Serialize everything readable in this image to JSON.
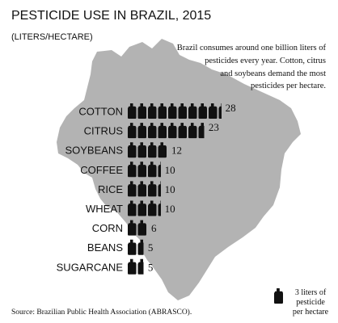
{
  "title": "PESTICIDE USE IN BRAZIL, 2015",
  "subtitle": "(LITERS/HECTARE)",
  "description": [
    "Brazil consumes around one billion liters of",
    "pesticides every year. Cotton, citrus",
    "and soybeans demand the most",
    "pesticides per hectare."
  ],
  "legend": {
    "icon": "pesticide-jug-icon",
    "lines": [
      "3 liters of",
      "pesticide",
      "per hectare"
    ]
  },
  "source": "Source: Brazilian Public Health Association (ABRASCO).",
  "colors": {
    "map": "#b3b3b3",
    "icon": "#111111",
    "text": "#111111"
  },
  "chart_data": {
    "type": "bar",
    "unit": "liters/hectare",
    "icon_value": 3,
    "categories": [
      "COTTON",
      "CITRUS",
      "SOYBEANS",
      "COFFEE",
      "RICE",
      "WHEAT",
      "CORN",
      "BEANS",
      "SUGARCANE"
    ],
    "values": [
      28,
      23,
      12,
      10,
      10,
      10,
      6,
      5,
      5
    ]
  }
}
